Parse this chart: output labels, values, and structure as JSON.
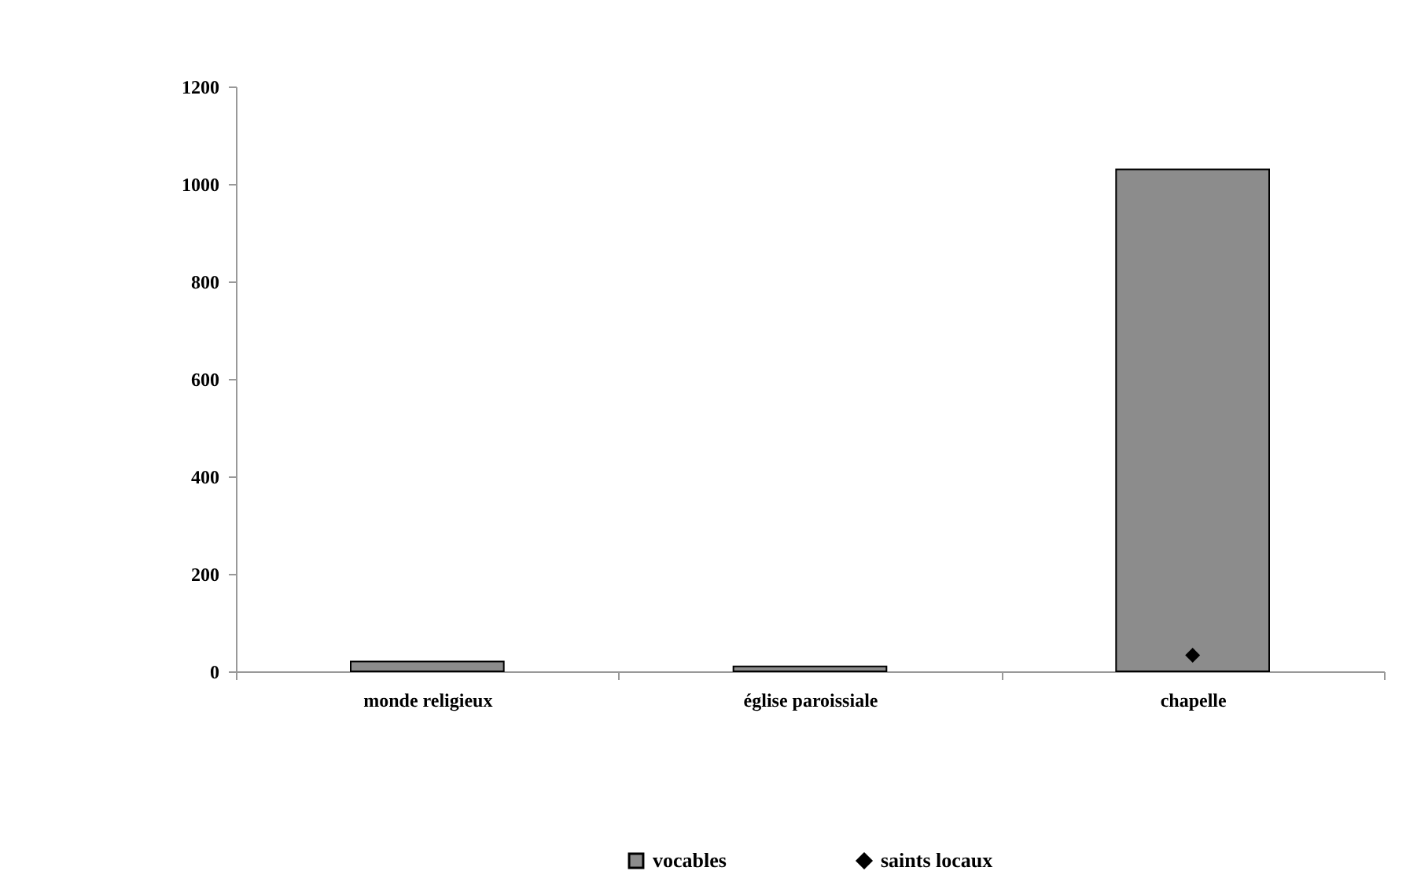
{
  "chart_data": {
    "type": "bar",
    "categories": [
      "monde religieux",
      "église paroissiale",
      "chapelle"
    ],
    "series": [
      {
        "name": "vocables",
        "color": "#8c8c8c",
        "values": [
          20,
          10,
          1030
        ]
      },
      {
        "name": "saints locaux",
        "type": "scatter",
        "color": "#000000",
        "marker": "diamond",
        "values": [
          null,
          null,
          33
        ]
      }
    ],
    "ylim": [
      0,
      1200
    ],
    "yticks": [
      0,
      200,
      400,
      600,
      800,
      1000,
      1200
    ],
    "grid": false,
    "legend": "bottom"
  }
}
